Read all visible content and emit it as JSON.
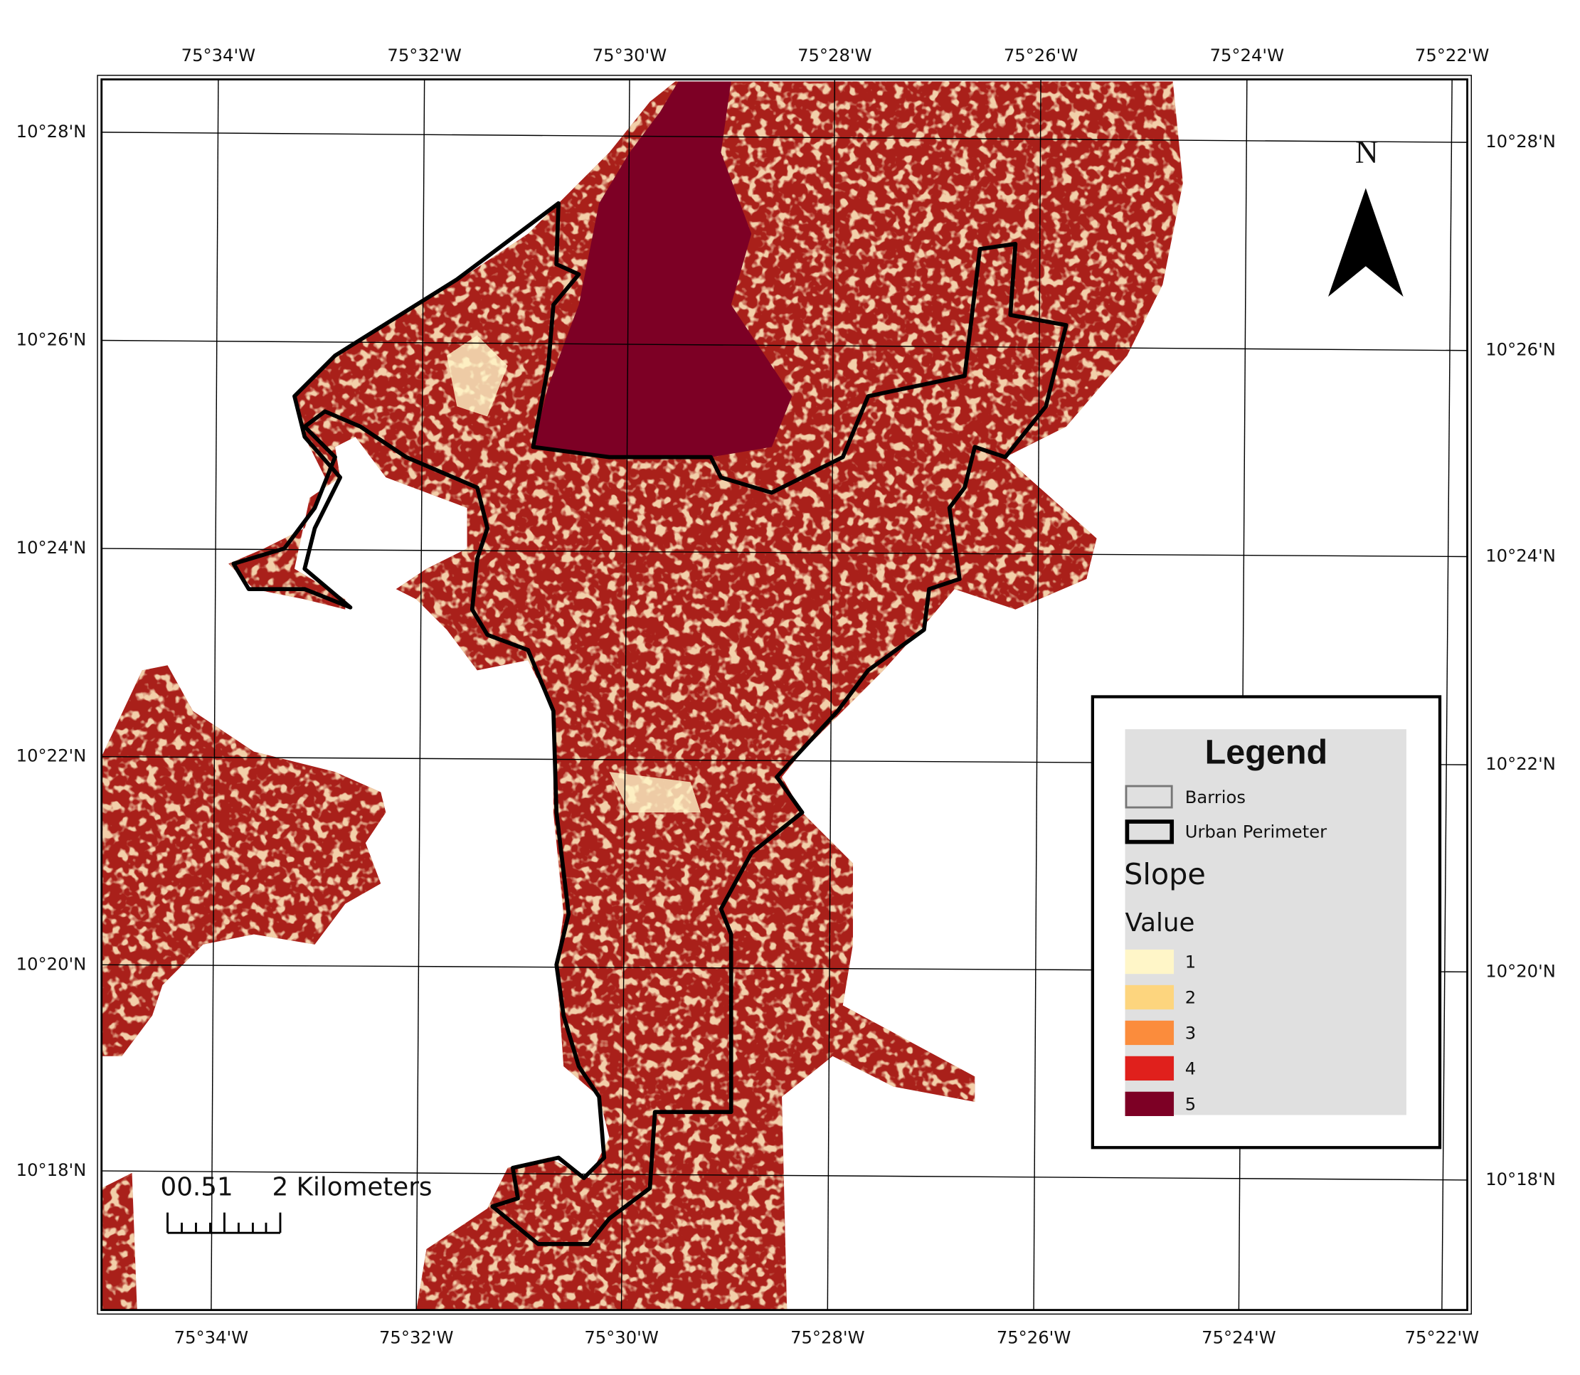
{
  "graticule": {
    "longitudes": [
      "75°34'W",
      "75°32'W",
      "75°30'W",
      "75°28'W",
      "75°26'W",
      "75°24'W",
      "75°22'W"
    ],
    "latitudes": [
      "10°28'N",
      "10°26'N",
      "10°24'N",
      "10°22'N",
      "10°20'N",
      "10°18'N"
    ]
  },
  "north_arrow": {
    "label": "N"
  },
  "scale_bar": {
    "labels": [
      "00.51",
      "2 Kilometers"
    ]
  },
  "legend": {
    "title": "Legend",
    "items": [
      {
        "label": "Barrios"
      },
      {
        "label": "Urban Perimeter"
      }
    ],
    "slope_title": "Slope",
    "value_title": "Value",
    "classes": [
      {
        "label": "1",
        "color": "#fff6c8"
      },
      {
        "label": "2",
        "color": "#fdd57e"
      },
      {
        "label": "3",
        "color": "#fb8c3c"
      },
      {
        "label": "4",
        "color": "#e0201c"
      },
      {
        "label": "5",
        "color": "#7d0025"
      }
    ]
  }
}
